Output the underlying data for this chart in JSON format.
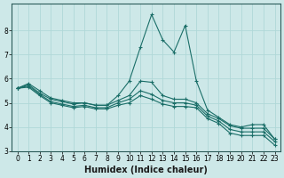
{
  "title": "",
  "xlabel": "Humidex (Indice chaleur)",
  "ylabel": "",
  "background_color": "#cde8e8",
  "grid_color": "#b0d8d8",
  "line_color": "#1a6e68",
  "x": [
    0,
    1,
    2,
    3,
    4,
    5,
    6,
    7,
    8,
    9,
    10,
    11,
    12,
    13,
    14,
    15,
    16,
    17,
    18,
    19,
    20,
    21,
    22,
    23
  ],
  "line1": [
    5.6,
    5.8,
    5.5,
    5.2,
    5.1,
    5.0,
    5.0,
    4.9,
    4.9,
    5.3,
    5.9,
    7.3,
    8.65,
    7.6,
    7.1,
    8.2,
    5.9,
    4.7,
    4.4,
    4.1,
    4.0,
    4.1,
    4.1,
    3.5
  ],
  "line2": [
    5.6,
    5.75,
    5.4,
    5.15,
    5.05,
    4.95,
    5.0,
    4.9,
    4.9,
    5.1,
    5.3,
    5.9,
    5.85,
    5.3,
    5.15,
    5.15,
    5.0,
    4.55,
    4.35,
    4.05,
    3.95,
    3.95,
    3.95,
    3.5
  ],
  "line3": [
    5.6,
    5.7,
    5.35,
    5.05,
    4.95,
    4.85,
    4.9,
    4.8,
    4.8,
    5.0,
    5.15,
    5.5,
    5.35,
    5.1,
    5.0,
    5.0,
    4.9,
    4.45,
    4.25,
    3.9,
    3.8,
    3.8,
    3.8,
    3.4
  ],
  "line4": [
    5.6,
    5.65,
    5.3,
    5.0,
    4.9,
    4.8,
    4.85,
    4.75,
    4.75,
    4.9,
    5.0,
    5.3,
    5.15,
    4.95,
    4.85,
    4.85,
    4.8,
    4.35,
    4.15,
    3.75,
    3.65,
    3.65,
    3.65,
    3.25
  ],
  "ylim": [
    3.0,
    9.0
  ],
  "xlim": [
    -0.5,
    23.5
  ],
  "yticks": [
    3,
    4,
    5,
    6,
    7,
    8
  ],
  "xticks": [
    0,
    1,
    2,
    3,
    4,
    5,
    6,
    7,
    8,
    9,
    10,
    11,
    12,
    13,
    14,
    15,
    16,
    17,
    18,
    19,
    20,
    21,
    22,
    23
  ],
  "tick_fontsize": 5.5,
  "xlabel_fontsize": 7.0
}
